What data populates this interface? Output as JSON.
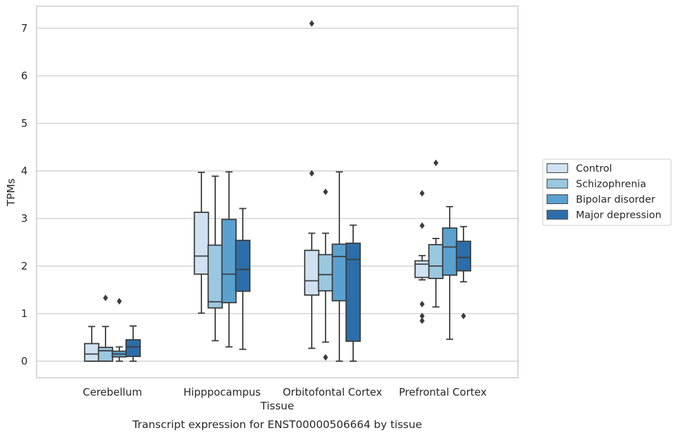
{
  "chart_data": {
    "type": "box",
    "xlabel": "Tissue",
    "ylabel": "TPMs",
    "caption": "Transcript expression for ENST00000506664 by tissue",
    "ylim": [
      -0.35,
      7.45
    ],
    "yticks": [
      0,
      1,
      2,
      3,
      4,
      5,
      6,
      7
    ],
    "grid": true,
    "legend_position": "right",
    "categories": [
      "Cerebellum",
      "Hipppocampus",
      "Orbitofontal Cortex",
      "Prefrontal Cortex"
    ],
    "series": [
      {
        "name": "Control",
        "color": "#d0e2f2",
        "boxes": [
          {
            "whislo": 0.0,
            "q1": 0.0,
            "med": 0.15,
            "q3": 0.37,
            "whishi": 0.73,
            "fliers": []
          },
          {
            "whislo": 1.01,
            "q1": 1.83,
            "med": 2.21,
            "q3": 3.13,
            "whishi": 3.97,
            "fliers": []
          },
          {
            "whislo": 0.27,
            "q1": 1.39,
            "med": 1.69,
            "q3": 2.33,
            "whishi": 2.69,
            "fliers": [
              3.95,
              7.1
            ]
          },
          {
            "whislo": 1.71,
            "q1": 1.76,
            "med": 2.04,
            "q3": 2.11,
            "whishi": 2.22,
            "fliers": [
              0.85,
              0.95,
              1.2,
              2.85,
              3.53
            ]
          }
        ]
      },
      {
        "name": "Schizophrenia",
        "color": "#9ac8e0",
        "boxes": [
          {
            "whislo": 0.0,
            "q1": 0.0,
            "med": 0.22,
            "q3": 0.29,
            "whishi": 0.73,
            "fliers": [
              1.33
            ]
          },
          {
            "whislo": 0.43,
            "q1": 1.12,
            "med": 1.25,
            "q3": 2.44,
            "whishi": 3.89,
            "fliers": []
          },
          {
            "whislo": 0.4,
            "q1": 1.48,
            "med": 1.82,
            "q3": 2.24,
            "whishi": 2.69,
            "fliers": [
              0.08,
              3.56
            ]
          },
          {
            "whislo": 1.14,
            "q1": 1.74,
            "med": 2.0,
            "q3": 2.45,
            "whishi": 2.58,
            "fliers": [
              4.17
            ]
          }
        ]
      },
      {
        "name": "Bipolar disorder",
        "color": "#5aa1cf",
        "boxes": [
          {
            "whislo": 0.0,
            "q1": 0.09,
            "med": 0.15,
            "q3": 0.21,
            "whishi": 0.3,
            "fliers": [
              1.26
            ]
          },
          {
            "whislo": 0.3,
            "q1": 1.23,
            "med": 1.83,
            "q3": 2.98,
            "whishi": 3.98,
            "fliers": []
          },
          {
            "whislo": 0.0,
            "q1": 1.27,
            "med": 2.2,
            "q3": 2.46,
            "whishi": 3.98,
            "fliers": []
          },
          {
            "whislo": 0.46,
            "q1": 1.81,
            "med": 2.4,
            "q3": 2.8,
            "whishi": 3.25,
            "fliers": []
          }
        ]
      },
      {
        "name": "Major depression",
        "color": "#2c6ea9",
        "boxes": [
          {
            "whislo": 0.0,
            "q1": 0.1,
            "med": 0.3,
            "q3": 0.45,
            "whishi": 0.74,
            "fliers": []
          },
          {
            "whislo": 0.25,
            "q1": 1.47,
            "med": 1.93,
            "q3": 2.54,
            "whishi": 3.21,
            "fliers": []
          },
          {
            "whislo": 0.0,
            "q1": 0.42,
            "med": 2.14,
            "q3": 2.48,
            "whishi": 2.86,
            "fliers": []
          },
          {
            "whislo": 1.67,
            "q1": 1.9,
            "med": 2.18,
            "q3": 2.52,
            "whishi": 2.83,
            "fliers": [
              0.95
            ]
          }
        ]
      }
    ]
  }
}
